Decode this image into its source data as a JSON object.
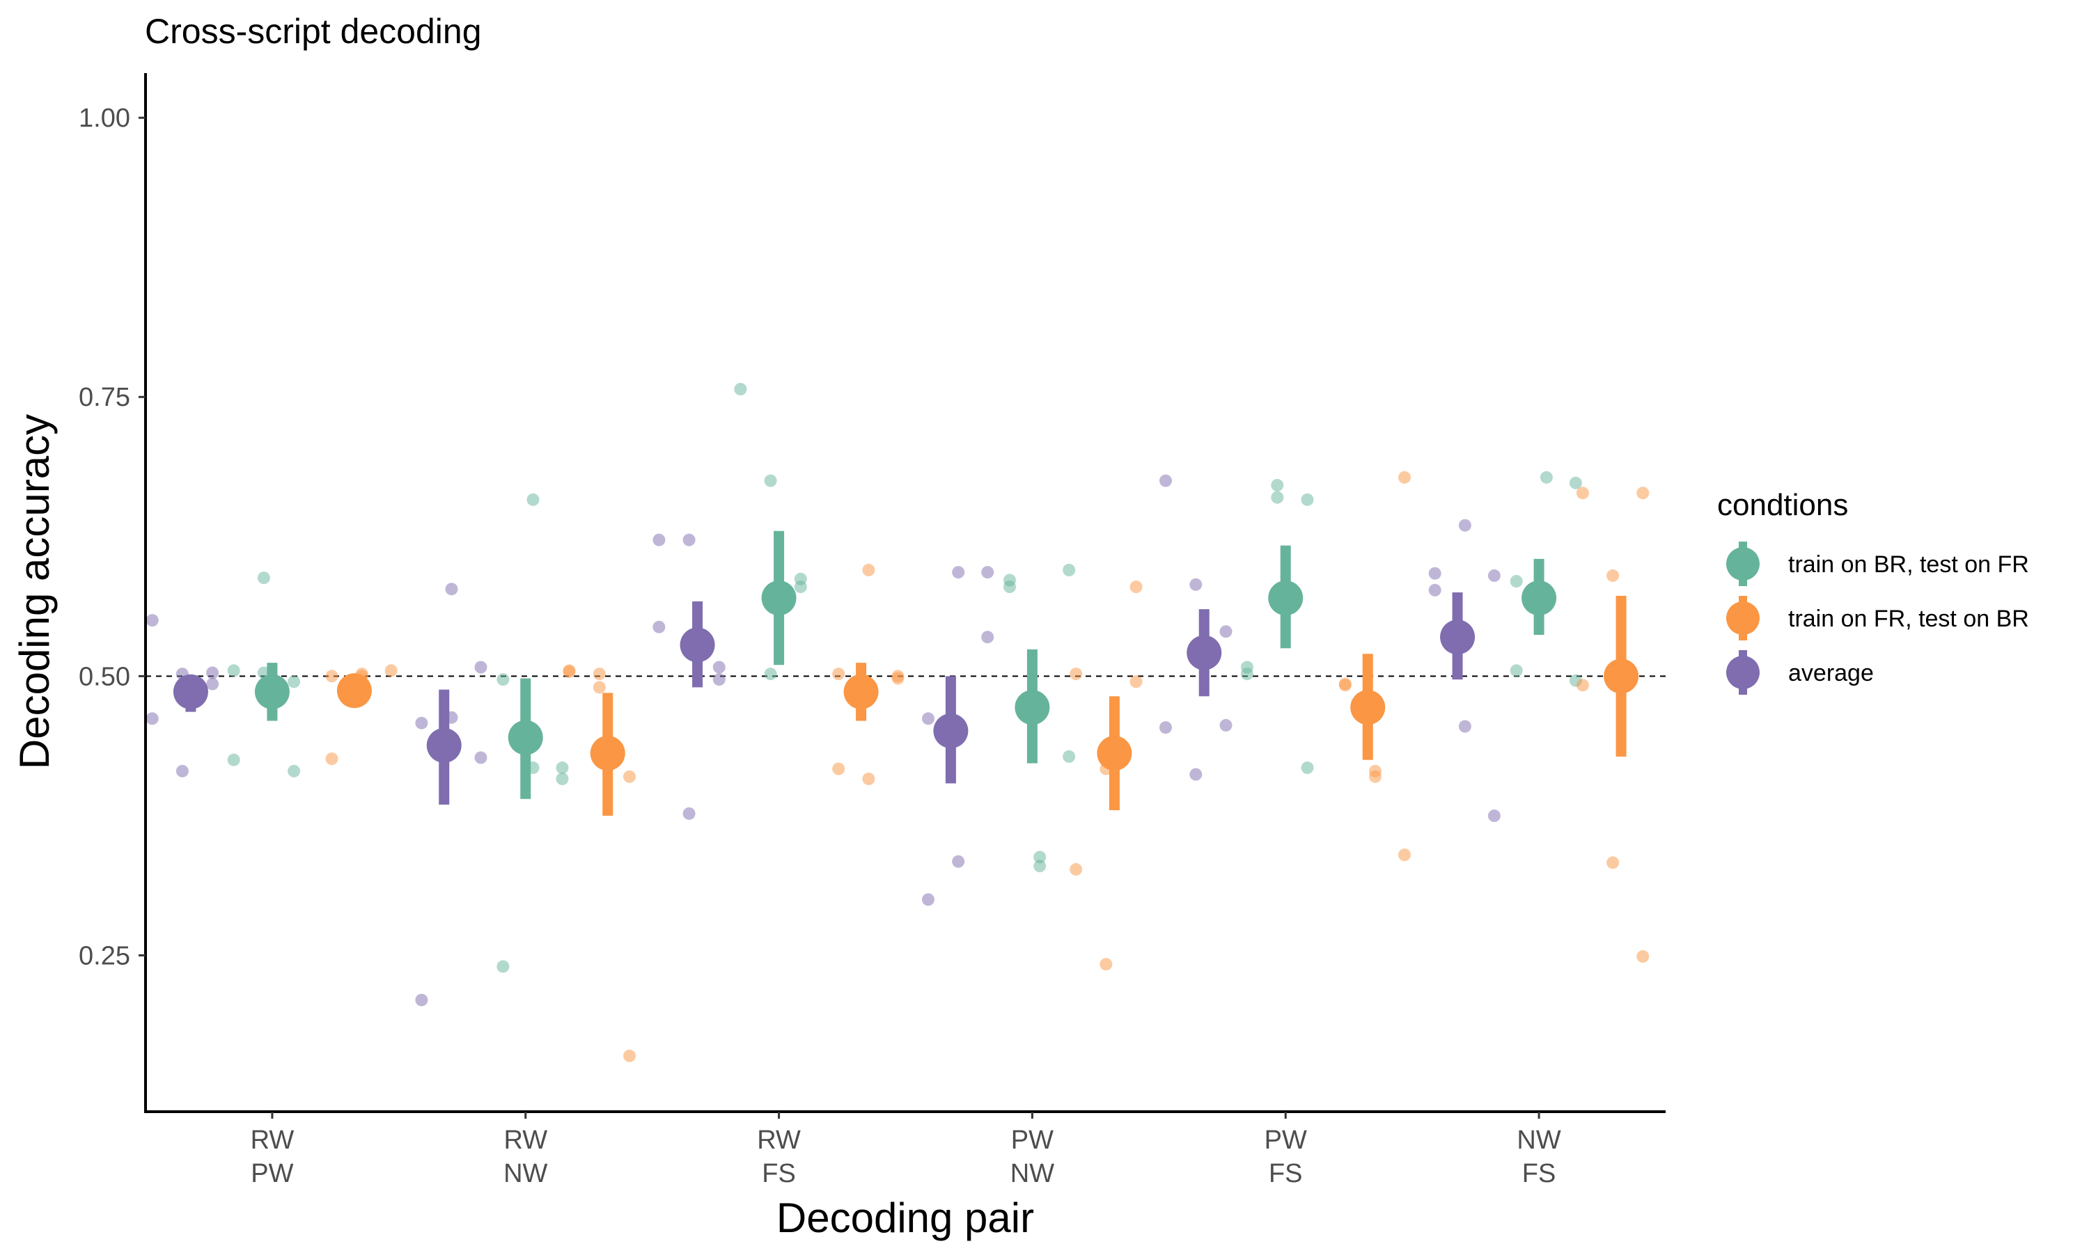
{
  "chart_data": {
    "type": "scatter",
    "title": "Cross-script decoding",
    "xlabel": "Decoding pair",
    "ylabel": "Decoding accuracy",
    "ylim": [
      0.11,
      1.04
    ],
    "yticks": [
      0.25,
      0.5,
      0.75,
      1.0
    ],
    "ytick_labels": [
      "0.25",
      "0.50",
      "0.75",
      "1.00"
    ],
    "reference_line": {
      "y": 0.5,
      "style": "dashed"
    },
    "grid": false,
    "legend": {
      "title": "condtions",
      "placement": "right"
    },
    "categories": [
      [
        "RW",
        "PW"
      ],
      [
        "RW",
        "NW"
      ],
      [
        "RW",
        "FS"
      ],
      [
        "PW",
        "NW"
      ],
      [
        "PW",
        "FS"
      ],
      [
        "NW",
        "FS"
      ]
    ],
    "series": [
      {
        "name": "train on BR, test on FR",
        "color": "#66b39b",
        "mean": [
          0.486,
          0.445,
          0.57,
          0.472,
          0.57,
          0.57
        ],
        "lower": [
          0.46,
          0.39,
          0.51,
          0.422,
          0.525,
          0.537
        ],
        "upper": [
          0.512,
          0.498,
          0.63,
          0.524,
          0.617,
          0.605
        ],
        "points": [
          [
            0.505,
            0.503,
            0.495,
            0.425,
            0.588,
            0.415
          ],
          [
            0.24,
            0.418,
            0.408,
            0.497,
            0.658,
            0.418
          ],
          [
            0.675,
            0.58,
            0.757,
            0.502,
            0.587
          ],
          [
            0.33,
            0.428,
            0.58,
            0.338,
            0.595,
            0.586
          ],
          [
            0.658,
            0.508,
            0.671,
            0.418,
            0.502,
            0.66
          ],
          [
            0.673,
            0.505,
            0.678,
            0.496,
            0.585
          ]
        ]
      },
      {
        "name": "train on FR, test on BR",
        "color": "#fa9644",
        "mean": [
          0.487,
          0.431,
          0.486,
          0.431,
          0.472,
          0.5
        ],
        "lower": [
          0.475,
          0.375,
          0.46,
          0.38,
          0.425,
          0.428
        ],
        "upper": [
          0.5,
          0.485,
          0.512,
          0.482,
          0.52,
          0.572
        ],
        "points": [
          [
            0.5,
            0.502,
            0.505,
            0.426,
            0.5
          ],
          [
            0.49,
            0.41,
            0.505,
            0.502,
            0.16,
            0.504
          ],
          [
            0.595,
            0.498,
            0.502,
            0.408,
            0.5,
            0.417
          ],
          [
            0.58,
            0.327,
            0.417,
            0.495,
            0.502,
            0.242
          ],
          [
            0.678,
            0.493,
            0.41,
            0.34,
            0.492,
            0.415
          ],
          [
            0.664,
            0.333,
            0.664,
            0.492,
            0.59,
            0.249
          ]
        ]
      },
      {
        "name": "average",
        "color": "#7f6daf",
        "mean": [
          0.486,
          0.438,
          0.528,
          0.451,
          0.521,
          0.535
        ],
        "lower": [
          0.468,
          0.385,
          0.49,
          0.404,
          0.482,
          0.497
        ],
        "upper": [
          0.497,
          0.488,
          0.567,
          0.5,
          0.56,
          0.575
        ],
        "points": [
          [
            0.415,
            0.493,
            0.55,
            0.502,
            0.503,
            0.462
          ],
          [
            0.463,
            0.427,
            0.21,
            0.578,
            0.508,
            0.458
          ],
          [
            0.508,
            0.622,
            0.622,
            0.497,
            0.544,
            0.377
          ],
          [
            0.535,
            0.3,
            0.593,
            0.593,
            0.462,
            0.334
          ],
          [
            0.675,
            0.582,
            0.54,
            0.454,
            0.412,
            0.456
          ],
          [
            0.577,
            0.635,
            0.59,
            0.592,
            0.455,
            0.375
          ]
        ]
      }
    ]
  }
}
